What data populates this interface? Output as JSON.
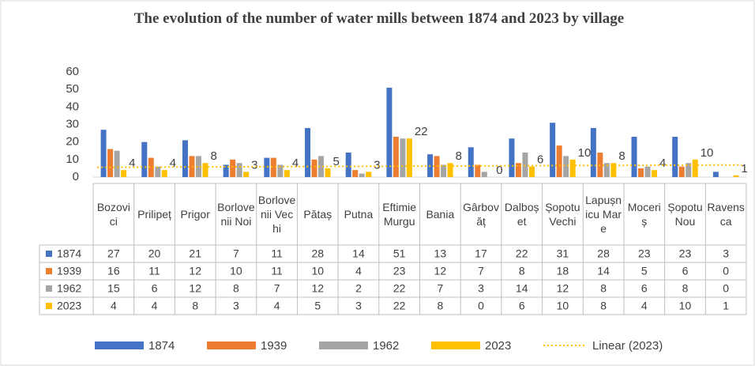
{
  "chart_data": {
    "type": "bar",
    "title": "The evolution of the number of water mills between 1874 and 2023 by village",
    "categories": [
      "Bozovici",
      "Prilipeț",
      "Prigor",
      "Borlovenii Noi",
      "Borlovenii Vechi",
      "Pătaș",
      "Putna",
      "Eftimie Murgu",
      "Bania",
      "Gârbovăț",
      "Dalboșet",
      "Șopotu Vechi",
      "Lapușnicu Mare",
      "Moceriș",
      "Șopotu Nou",
      "Ravensca"
    ],
    "series": [
      {
        "name": "1874",
        "color": "#4472c4",
        "values": [
          27,
          20,
          21,
          7,
          11,
          28,
          14,
          51,
          13,
          17,
          22,
          31,
          28,
          23,
          23,
          3
        ]
      },
      {
        "name": "1939",
        "color": "#ed7d31",
        "values": [
          16,
          11,
          12,
          10,
          11,
          10,
          4,
          23,
          12,
          7,
          8,
          18,
          14,
          5,
          6,
          0
        ]
      },
      {
        "name": "1962",
        "color": "#a5a5a5",
        "values": [
          15,
          6,
          12,
          8,
          7,
          12,
          2,
          22,
          7,
          3,
          14,
          12,
          8,
          6,
          8,
          0
        ]
      },
      {
        "name": "2023",
        "color": "#ffc000",
        "values": [
          4,
          4,
          8,
          3,
          4,
          5,
          3,
          22,
          8,
          0,
          6,
          10,
          8,
          4,
          10,
          1
        ],
        "data_labels": true
      }
    ],
    "trendline": {
      "name": "Linear (2023)",
      "color": "#ffc000",
      "style": "dotted"
    },
    "ylim": [
      0,
      60
    ],
    "yticks": [
      0,
      10,
      20,
      30,
      40,
      50,
      60
    ],
    "grid": false,
    "data_table": true,
    "legend": "bottom"
  }
}
